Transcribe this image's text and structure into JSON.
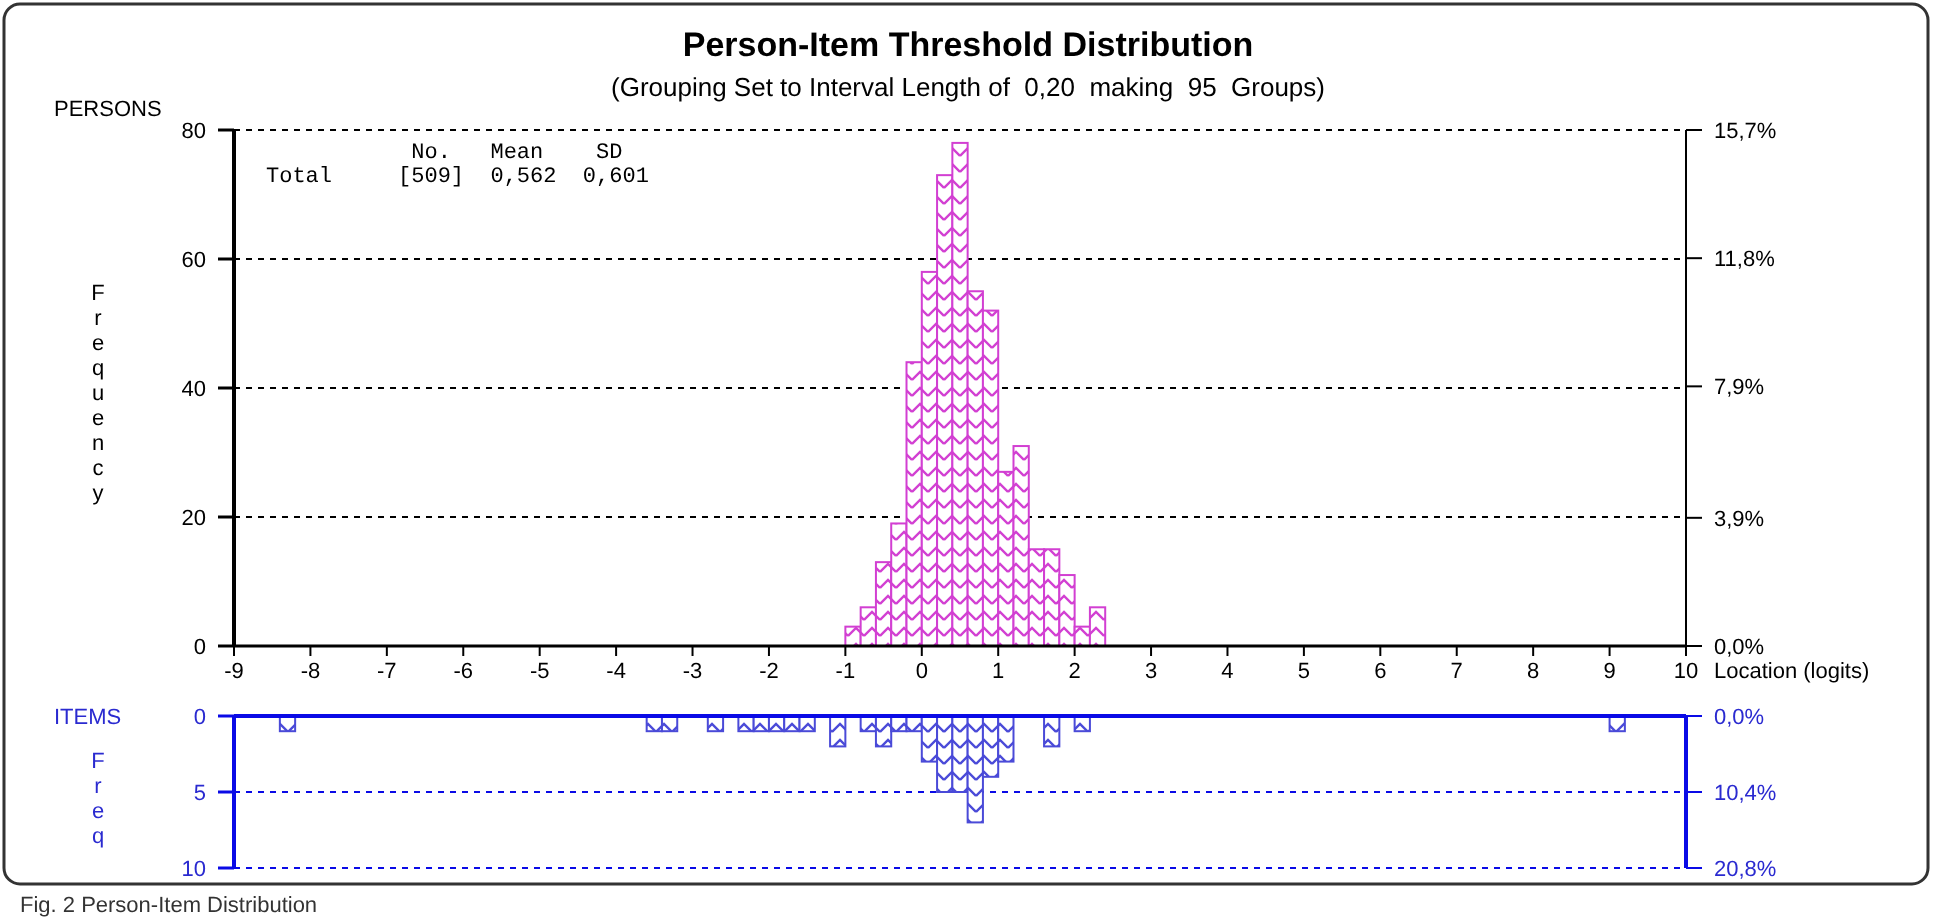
{
  "chart_data": [
    {
      "type": "histogram",
      "title": "Person-Item Threshold Distribution",
      "subtitle": "(Grouping Set to Interval Length of  0,20  making  95  Groups)",
      "ylabel": "Frequency",
      "xlabel": "Location (logits)",
      "annotations": [
        "PERSONS",
        "           No.   Mean    SD",
        "Total     [509]  0,562  0,601"
      ],
      "bins": [
        -1,
        -0.8,
        -0.6,
        -0.4,
        -0.2,
        0,
        0.2,
        0.4,
        0.6,
        0.8,
        1,
        1.2,
        1.4,
        1.6,
        1.8,
        2,
        2.2,
        2.4
      ],
      "values": [
        3,
        6,
        13,
        19,
        44,
        58,
        73,
        78,
        55,
        52,
        27,
        31,
        15,
        15,
        11,
        3,
        6
      ],
      "color": "#d23fd2",
      "xlim": [
        -9,
        10
      ],
      "xticks": [
        -9,
        -8,
        -7,
        -6,
        -5,
        -4,
        -3,
        -2,
        -1,
        0,
        1,
        2,
        3,
        4,
        5,
        6,
        7,
        8,
        9,
        10
      ],
      "ylim": [
        0,
        80
      ],
      "yticks": [
        0,
        20,
        40,
        60,
        80
      ],
      "y2lim": [
        0,
        15.7
      ],
      "y2ticks": [
        {
          "value": 0,
          "label": "0,0%"
        },
        {
          "value": 3.9,
          "label": "3,9%"
        },
        {
          "value": 7.9,
          "label": "7,9%"
        },
        {
          "value": 11.8,
          "label": "11,8%"
        },
        {
          "value": 15.7,
          "label": "15,7%"
        }
      ],
      "grid": "y"
    },
    {
      "type": "histogram",
      "ylabel": "Freq",
      "annotations": [
        "ITEMS",
        "Fig. 2 Person-Item Distribution"
      ],
      "bins": [
        -8.4,
        -8.2,
        -8,
        -7.8,
        -7.6,
        -7.4,
        -7.2,
        -7,
        -6.8,
        -6.6,
        -6.4,
        -6.2,
        -6,
        -5.8,
        -5.6,
        -5.4,
        -5.2,
        -5,
        -4.8,
        -4.6,
        -4.4,
        -4.2,
        -4,
        -3.8,
        -3.6,
        -3.4,
        -3.2,
        -3,
        -2.8,
        -2.6,
        -2.4,
        -2.2,
        -2,
        -1.8,
        -1.6,
        -1.4,
        -1.2,
        -1,
        -0.8,
        -0.6,
        -0.4,
        -0.2,
        0,
        0.2,
        0.4,
        0.6,
        0.8,
        1,
        1.2,
        1.4,
        1.6,
        1.8,
        2,
        2.2,
        2.4,
        2.6,
        2.8,
        3,
        3.2,
        3.4,
        3.6,
        3.8,
        4,
        4.2,
        4.4,
        4.6,
        4.8,
        5,
        5.2,
        5.4,
        5.6,
        5.8,
        6,
        6.2,
        6.4,
        6.6,
        6.8,
        7,
        7.2,
        7.4,
        7.6,
        7.8,
        8,
        8.2,
        8.4,
        8.6,
        8.8,
        9,
        9.2
      ],
      "values": [
        1,
        0,
        0,
        0,
        0,
        0,
        0,
        0,
        0,
        0,
        0,
        0,
        0,
        0,
        0,
        0,
        0,
        0,
        0,
        0,
        0,
        0,
        0,
        0,
        1,
        1,
        0,
        0,
        1,
        0,
        1,
        1,
        1,
        1,
        1,
        0,
        2,
        0,
        1,
        2,
        1,
        1,
        3,
        5,
        5,
        7,
        4,
        3,
        0,
        0,
        2,
        0,
        1,
        0,
        0,
        0,
        0,
        0,
        0,
        0,
        0,
        0,
        0,
        0,
        0,
        0,
        0,
        0,
        0,
        0,
        0,
        0,
        0,
        0,
        0,
        0,
        0,
        0,
        0,
        0,
        0,
        0,
        0,
        0,
        0,
        0,
        0,
        1
      ],
      "color": "#4a4ad8",
      "xlim": [
        -9,
        10
      ],
      "xticks": [
        -9,
        -8,
        -7,
        -6,
        -5,
        -4,
        -3,
        -2,
        -1,
        0,
        1,
        2,
        3,
        4,
        5,
        6,
        7,
        8,
        9,
        10
      ],
      "ylim": [
        10,
        0
      ],
      "yticks": [
        0,
        5,
        10
      ],
      "y2lim": [
        20.8,
        0
      ],
      "y2ticks": [
        {
          "value": 0,
          "label": "0,0%"
        },
        {
          "value": 10.4,
          "label": "10,4%"
        },
        {
          "value": 20.8,
          "label": "20,8%"
        }
      ],
      "ref_lines": [
        {
          "axis": "y",
          "value": 5,
          "line_style": "dashed"
        },
        {
          "axis": "y",
          "value": 10,
          "line_style": "dashed"
        }
      ],
      "tick_labels": "y"
    }
  ]
}
